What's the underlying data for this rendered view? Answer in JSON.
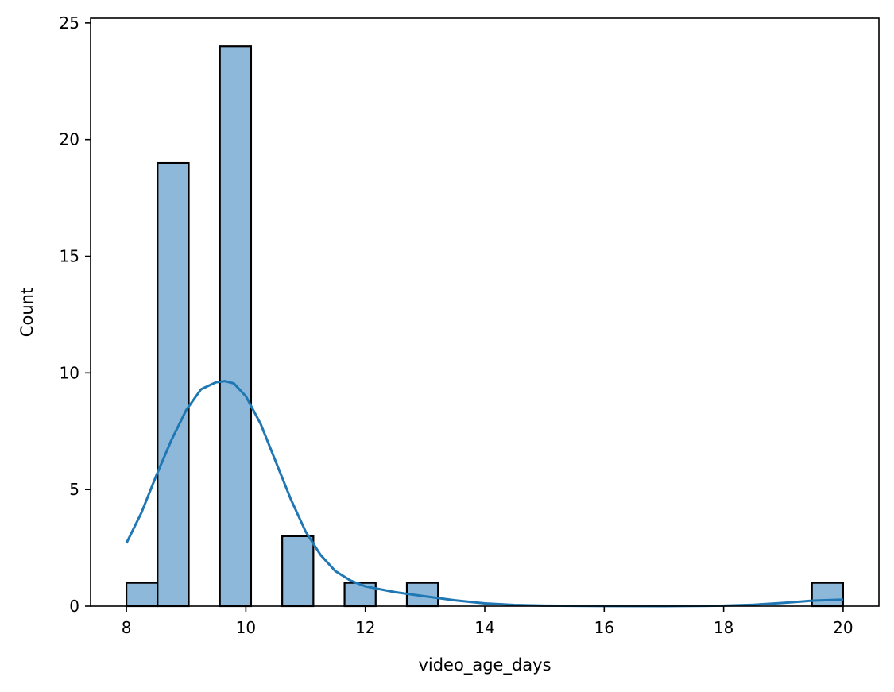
{
  "chart_data": {
    "type": "bar",
    "xlabel": "video_age_days",
    "ylabel": "Count",
    "xlim": [
      7.4,
      20.6
    ],
    "ylim": [
      0,
      25.2
    ],
    "xticks": [
      "8",
      "10",
      "12",
      "14",
      "16",
      "18",
      "20"
    ],
    "yticks": [
      "0",
      "5",
      "10",
      "15",
      "20",
      "25"
    ],
    "bins": [
      {
        "x0": 8.0,
        "x1": 8.5217,
        "count": 1
      },
      {
        "x0": 8.5217,
        "x1": 9.0435,
        "count": 19
      },
      {
        "x0": 9.5652,
        "x1": 10.087,
        "count": 24
      },
      {
        "x0": 10.6087,
        "x1": 11.1304,
        "count": 3
      },
      {
        "x0": 11.6522,
        "x1": 12.1739,
        "count": 1
      },
      {
        "x0": 12.6957,
        "x1": 13.2174,
        "count": 1
      },
      {
        "x0": 19.4783,
        "x1": 20.0,
        "count": 1
      }
    ],
    "kde": {
      "x": [
        8.0,
        8.25,
        8.5,
        8.75,
        9.0,
        9.25,
        9.5,
        9.65,
        9.8,
        10.0,
        10.25,
        10.5,
        10.75,
        11.0,
        11.25,
        11.5,
        11.75,
        12.0,
        12.5,
        13.0,
        13.5,
        14.0,
        14.5,
        15.0,
        16.0,
        17.0,
        18.0,
        18.5,
        19.0,
        19.5,
        20.0
      ],
      "y": [
        2.7,
        4.0,
        5.6,
        7.1,
        8.4,
        9.3,
        9.6,
        9.65,
        9.55,
        9.0,
        7.8,
        6.2,
        4.6,
        3.2,
        2.2,
        1.5,
        1.1,
        0.85,
        0.6,
        0.42,
        0.25,
        0.12,
        0.05,
        0.02,
        0.005,
        0.0,
        0.02,
        0.06,
        0.14,
        0.24,
        0.28
      ]
    },
    "colors": {
      "bar_fill": "#8db8d9",
      "bar_edge": "#000000",
      "kde_line": "#1f77b4"
    },
    "grid": false,
    "legend": "none"
  }
}
